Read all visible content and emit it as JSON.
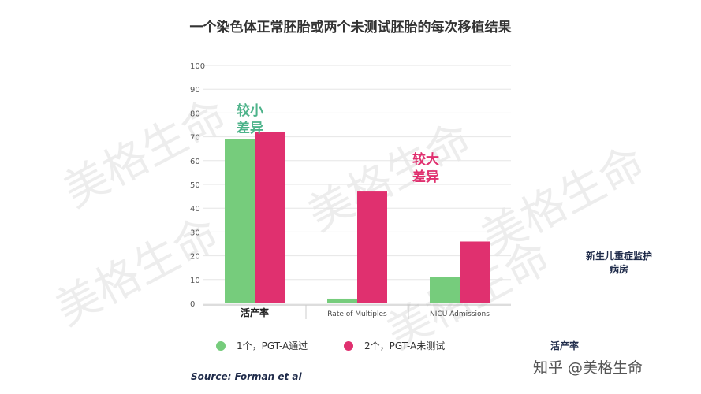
{
  "title": "一个染色体正常胚胎或两个未测试胚胎的每次移植结果",
  "colors": {
    "series1": "#76cc7c",
    "series2": "#e0306f",
    "annot_small": "#4db38a",
    "annot_large": "#e0306f"
  },
  "annotations": {
    "small_line1": "较小",
    "small_line2": "差异",
    "large_line1": "较大",
    "large_line2": "差异"
  },
  "side_note": "新生儿重症监护病房",
  "side_note_2": "活产率",
  "source": "Source: Forman et al",
  "credit": "知乎 @美格生命",
  "watermark": "美格生命",
  "chart_data": {
    "type": "bar",
    "categories": [
      "活产率",
      "Rate of Multiples",
      "NICU Admissions"
    ],
    "series": [
      {
        "name": "1个，PGT-A通过",
        "values": [
          69,
          2,
          11
        ]
      },
      {
        "name": "2个，PGT-A未测试",
        "values": [
          72,
          47,
          26
        ]
      }
    ],
    "yticks": [
      0,
      10,
      20,
      30,
      40,
      50,
      60,
      70,
      80,
      90,
      100
    ],
    "ylim": [
      0,
      100
    ],
    "grid": true,
    "legend_position": "bottom"
  }
}
